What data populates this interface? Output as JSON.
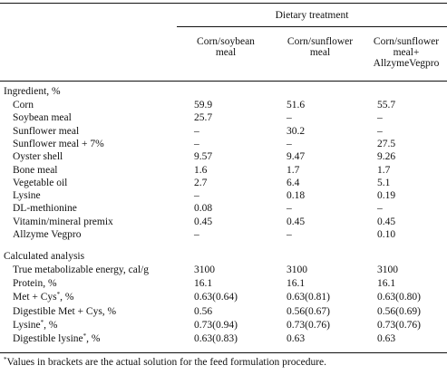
{
  "header": {
    "group": "Dietary treatment",
    "col1": [
      "Corn/soybean",
      "meal"
    ],
    "col2": [
      "Corn/sunflower",
      "meal"
    ],
    "col3": [
      "Corn/sunflower",
      "meal+",
      "AllzymeVegpro"
    ]
  },
  "sections": {
    "ingredient": "Ingredient, %",
    "analysis": "Calculated analysis"
  },
  "ingredient_rows": [
    {
      "label": "Corn",
      "v1": "59.9",
      "v2": "51.6",
      "v3": "55.7"
    },
    {
      "label": "Soybean meal",
      "v1": "25.7",
      "v2": "–",
      "v3": "–"
    },
    {
      "label": "Sunflower meal",
      "v1": "–",
      "v2": "30.2",
      "v3": "–"
    },
    {
      "label": "Sunflower meal + 7%",
      "v1": "–",
      "v2": "–",
      "v3": "27.5"
    },
    {
      "label": "Oyster shell",
      "v1": "9.57",
      "v2": "9.47",
      "v3": "9.26"
    },
    {
      "label": "Bone meal",
      "v1": "1.6",
      "v2": "1.7",
      "v3": "1.7"
    },
    {
      "label": "Vegetable oil",
      "v1": "2.7",
      "v2": "6.4",
      "v3": "5.1"
    },
    {
      "label": "Lysine",
      "v1": "–",
      "v2": "0.18",
      "v3": "0.19"
    },
    {
      "label": "DL-methionine",
      "v1": "0.08",
      "v2": "–",
      "v3": "–"
    },
    {
      "label": "Vitamin/mineral premix",
      "v1": "0.45",
      "v2": "0.45",
      "v3": "0.45"
    },
    {
      "label": "Allzyme Vegpro",
      "v1": "–",
      "v2": "–",
      "v3": "0.10"
    }
  ],
  "analysis_rows": [
    {
      "label": "True metabolizable energy, cal/g",
      "v1": "3100",
      "v2": "3100",
      "v3": "3100"
    },
    {
      "label": "Protein, %",
      "v1": "16.1",
      "v2": "16.1",
      "v3": "16.1"
    },
    {
      "label_pre": "Met + Cys",
      "label_sup": "*",
      "label_post": ", %",
      "v1": "0.63(0.64)",
      "v2": "0.63(0.81)",
      "v3": "0.63(0.80)"
    },
    {
      "label": "Digestible Met + Cys, %",
      "v1": "0.56",
      "v2": "0.56(0.67)",
      "v3": "0.56(0.69)"
    },
    {
      "label_pre": "Lysine",
      "label_sup": "*",
      "label_post": ", %",
      "v1": "0.73(0.94)",
      "v2": "0.73(0.76)",
      "v3": "0.73(0.76)"
    },
    {
      "label_pre": "Digestible lysine",
      "label_sup": "*",
      "label_post": ", %",
      "v1": "0.63(0.83)",
      "v2": "0.63",
      "v3": "0.63"
    }
  ],
  "footnote": {
    "mark": "*",
    "text": "Values in brackets are the actual solution for the feed formulation procedure."
  }
}
